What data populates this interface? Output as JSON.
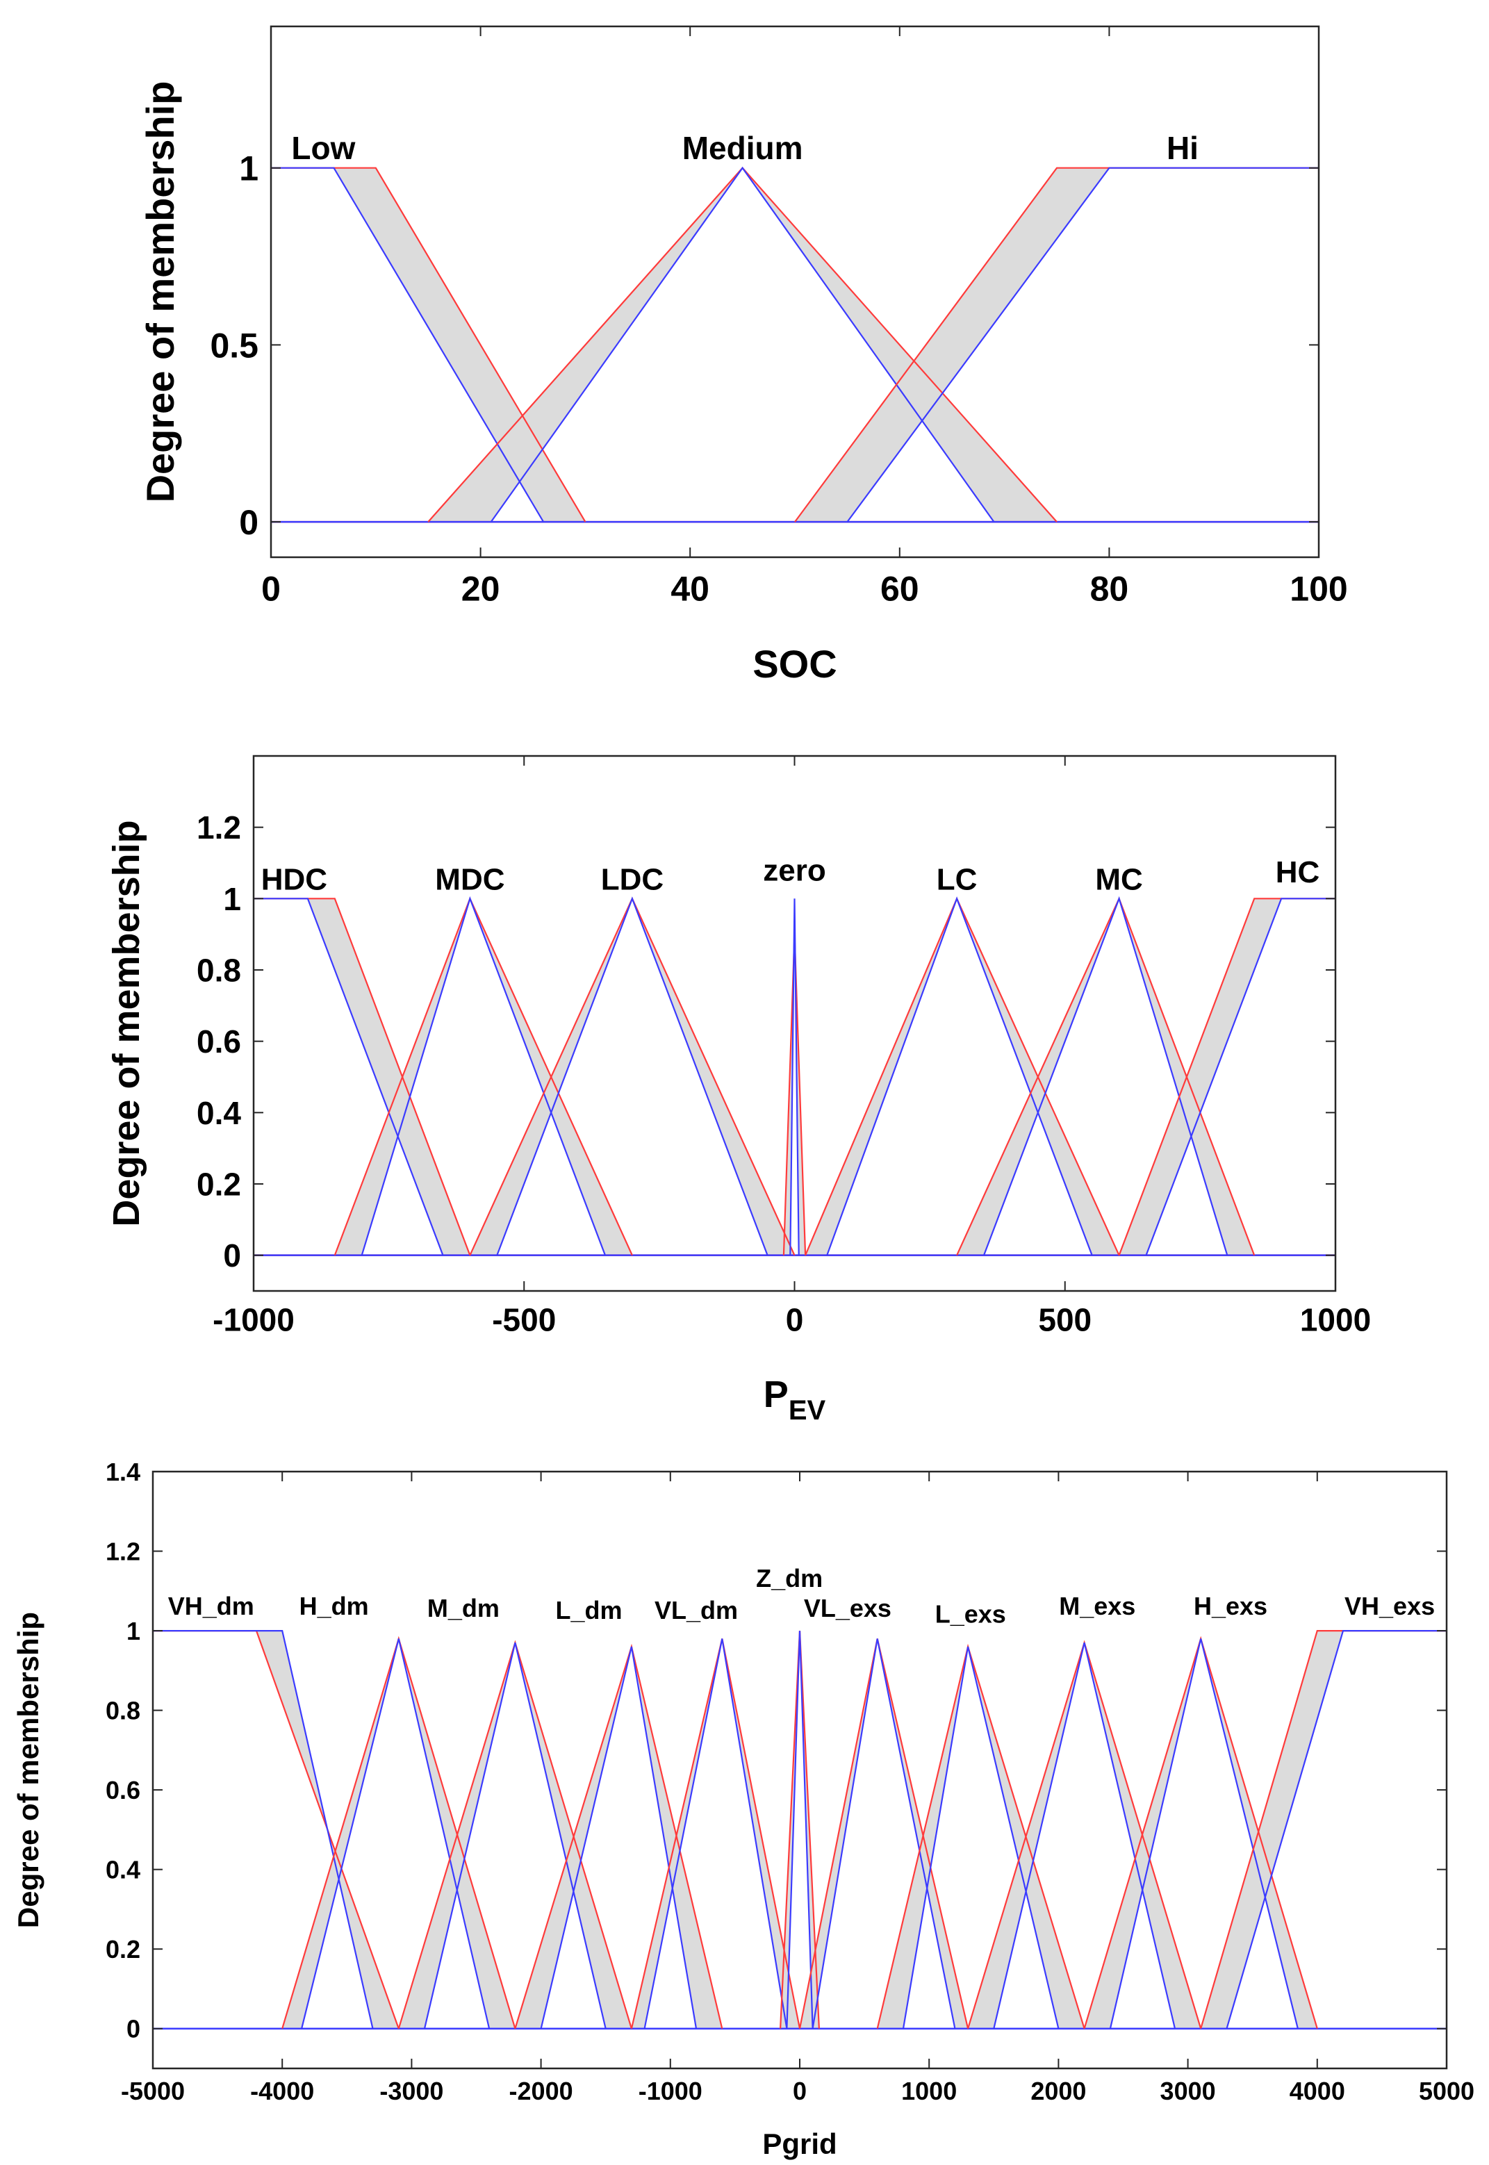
{
  "chart_data": [
    {
      "type": "line",
      "title": "",
      "xlabel": "SOC",
      "xlabel_sub": "",
      "ylabel": "Degree of membership",
      "xlim": [
        0,
        100
      ],
      "ylim": [
        -0.1,
        1.4
      ],
      "xticks": [
        0,
        20,
        40,
        60,
        80,
        100
      ],
      "xtick_labels": [
        "0",
        "20",
        "40",
        "60",
        "80",
        "100"
      ],
      "yticks": [
        0,
        0.5,
        1
      ],
      "ytick_labels": [
        "0",
        "0.5",
        "1"
      ],
      "colors": {
        "upper": "#ff3b3b",
        "lower": "#3b3bff",
        "fill": "#dcdcdc"
      },
      "mfs": [
        {
          "name": "Low",
          "label_x": 5,
          "label_y": 1.025,
          "upper": [
            [
              0,
              1
            ],
            [
              10,
              1
            ],
            [
              30,
              0
            ]
          ],
          "lower": [
            [
              0,
              1
            ],
            [
              6,
              1
            ],
            [
              26,
              0
            ]
          ]
        },
        {
          "name": "Medium",
          "label_x": 45,
          "label_y": 1.025,
          "upper": [
            [
              15,
              0
            ],
            [
              45,
              1
            ],
            [
              75,
              0
            ]
          ],
          "lower": [
            [
              21,
              0
            ],
            [
              45,
              1
            ],
            [
              69,
              0
            ]
          ]
        },
        {
          "name": "Hi",
          "label_x": 87,
          "label_y": 1.025,
          "upper": [
            [
              50,
              0
            ],
            [
              75,
              1
            ],
            [
              100,
              1
            ]
          ],
          "lower": [
            [
              55,
              0
            ],
            [
              80,
              1
            ],
            [
              100,
              1
            ]
          ]
        }
      ]
    },
    {
      "type": "line",
      "title": "",
      "xlabel": "P",
      "xlabel_sub": "EV",
      "ylabel": "Degree of membership",
      "xlim": [
        -1000,
        1000
      ],
      "ylim": [
        -0.1,
        1.4
      ],
      "xticks": [
        -1000,
        -500,
        0,
        500,
        1000
      ],
      "xtick_labels": [
        "-1000",
        "-500",
        "0",
        "500",
        "1000"
      ],
      "yticks": [
        0,
        0.2,
        0.4,
        0.6,
        0.8,
        1,
        1.2
      ],
      "ytick_labels": [
        "0",
        "0.2",
        "0.4",
        "0.6",
        "0.8",
        "1",
        "1.2"
      ],
      "colors": {
        "upper": "#ff3b3b",
        "lower": "#3b3bff",
        "fill": "#dcdcdc"
      },
      "mfs": [
        {
          "name": "HDC",
          "label_x": -925,
          "label_y": 1.025,
          "upper": [
            [
              -1000,
              1
            ],
            [
              -850,
              1
            ],
            [
              -600,
              0
            ]
          ],
          "lower": [
            [
              -1000,
              1
            ],
            [
              -900,
              1
            ],
            [
              -650,
              0
            ]
          ]
        },
        {
          "name": "MDC",
          "label_x": -600,
          "label_y": 1.025,
          "upper": [
            [
              -850,
              0
            ],
            [
              -600,
              1
            ],
            [
              -300,
              0
            ]
          ],
          "lower": [
            [
              -800,
              0
            ],
            [
              -600,
              1
            ],
            [
              -350,
              0
            ]
          ]
        },
        {
          "name": "LDC",
          "label_x": -300,
          "label_y": 1.025,
          "upper": [
            [
              -600,
              0
            ],
            [
              -300,
              1
            ],
            [
              0,
              0
            ]
          ],
          "lower": [
            [
              -550,
              0
            ],
            [
              -300,
              1
            ],
            [
              -50,
              0
            ]
          ]
        },
        {
          "name": "zero",
          "label_x": 0,
          "label_y": 1.05,
          "upper": [
            [
              -20,
              0
            ],
            [
              0,
              0.9
            ],
            [
              20,
              0
            ]
          ],
          "lower": [
            [
              -8,
              0
            ],
            [
              0,
              1
            ],
            [
              8,
              0
            ]
          ]
        },
        {
          "name": "LC",
          "label_x": 300,
          "label_y": 1.025,
          "upper": [
            [
              20,
              0
            ],
            [
              300,
              1
            ],
            [
              600,
              0
            ]
          ],
          "lower": [
            [
              60,
              0
            ],
            [
              300,
              1
            ],
            [
              550,
              0
            ]
          ]
        },
        {
          "name": "MC",
          "label_x": 600,
          "label_y": 1.025,
          "upper": [
            [
              300,
              0
            ],
            [
              600,
              1
            ],
            [
              850,
              0
            ]
          ],
          "lower": [
            [
              350,
              0
            ],
            [
              600,
              1
            ],
            [
              800,
              0
            ]
          ]
        },
        {
          "name": "HC",
          "label_x": 930,
          "label_y": 1.045,
          "upper": [
            [
              600,
              0
            ],
            [
              850,
              1
            ],
            [
              1000,
              1
            ]
          ],
          "lower": [
            [
              650,
              0
            ],
            [
              900,
              1
            ],
            [
              1000,
              1
            ]
          ]
        }
      ]
    },
    {
      "type": "line",
      "title": "",
      "xlabel": "Pgrid",
      "xlabel_sub": "",
      "ylabel": "Degree of membership",
      "xlim": [
        -5000,
        5000
      ],
      "ylim": [
        -0.1,
        1.4
      ],
      "xticks": [
        -5000,
        -4000,
        -3000,
        -2000,
        -1000,
        0,
        1000,
        2000,
        3000,
        4000,
        5000
      ],
      "xtick_labels": [
        "-5000",
        "-4000",
        "-3000",
        "-2000",
        "-1000",
        "0",
        "1000",
        "2000",
        "3000",
        "4000",
        "5000"
      ],
      "yticks": [
        0,
        0.2,
        0.4,
        0.6,
        0.8,
        1,
        1.2,
        1.4
      ],
      "ytick_labels": [
        "0",
        "0.2",
        "0.4",
        "0.6",
        "0.8",
        "1",
        "1.2",
        "1.4"
      ],
      "colors": {
        "upper": "#ff3b3b",
        "lower": "#3b3bff",
        "fill": "#dcdcdc"
      },
      "mfs": [
        {
          "name": "VH_dm",
          "label_x": -4550,
          "label_y": 1.04,
          "upper": [
            [
              -5000,
              1
            ],
            [
              -4200,
              1
            ],
            [
              -3100,
              0
            ]
          ],
          "lower": [
            [
              -5000,
              1
            ],
            [
              -4000,
              1
            ],
            [
              -3300,
              0
            ]
          ]
        },
        {
          "name": "H_dm",
          "label_x": -3600,
          "label_y": 1.04,
          "upper": [
            [
              -4000,
              0
            ],
            [
              -3100,
              0.98
            ],
            [
              -2200,
              0
            ]
          ],
          "lower": [
            [
              -3850,
              0
            ],
            [
              -3100,
              0.98
            ],
            [
              -2400,
              0
            ]
          ]
        },
        {
          "name": "M_dm",
          "label_x": -2600,
          "label_y": 1.035,
          "upper": [
            [
              -3100,
              0
            ],
            [
              -2200,
              0.97
            ],
            [
              -1300,
              0
            ]
          ],
          "lower": [
            [
              -2900,
              0
            ],
            [
              -2200,
              0.97
            ],
            [
              -1500,
              0
            ]
          ]
        },
        {
          "name": "L_dm",
          "label_x": -1630,
          "label_y": 1.03,
          "upper": [
            [
              -2200,
              0
            ],
            [
              -1300,
              0.96
            ],
            [
              -600,
              0
            ]
          ],
          "lower": [
            [
              -2000,
              0
            ],
            [
              -1300,
              0.96
            ],
            [
              -800,
              0
            ]
          ]
        },
        {
          "name": "VL_dm",
          "label_x": -800,
          "label_y": 1.03,
          "upper": [
            [
              -1300,
              0
            ],
            [
              -600,
              0.98
            ],
            [
              0,
              0
            ]
          ],
          "lower": [
            [
              -1200,
              0
            ],
            [
              -600,
              0.98
            ],
            [
              -100,
              0
            ]
          ]
        },
        {
          "name": "Z_dm",
          "label_x": -80,
          "label_y": 1.11,
          "upper": [
            [
              -150,
              0
            ],
            [
              0,
              1
            ],
            [
              150,
              0
            ]
          ],
          "lower": [
            [
              -100,
              0
            ],
            [
              0,
              1
            ],
            [
              100,
              0
            ]
          ]
        },
        {
          "name": "VL_exs",
          "label_x": 370,
          "label_y": 1.035,
          "upper": [
            [
              0,
              0
            ],
            [
              600,
              0.98
            ],
            [
              1300,
              0
            ]
          ],
          "lower": [
            [
              100,
              0
            ],
            [
              600,
              0.98
            ],
            [
              1200,
              0
            ]
          ]
        },
        {
          "name": "L_exs",
          "label_x": 1320,
          "label_y": 1.02,
          "upper": [
            [
              600,
              0
            ],
            [
              1300,
              0.96
            ],
            [
              2200,
              0
            ]
          ],
          "lower": [
            [
              800,
              0
            ],
            [
              1300,
              0.96
            ],
            [
              2000,
              0
            ]
          ]
        },
        {
          "name": "M_exs",
          "label_x": 2300,
          "label_y": 1.04,
          "upper": [
            [
              1300,
              0
            ],
            [
              2200,
              0.97
            ],
            [
              3100,
              0
            ]
          ],
          "lower": [
            [
              1500,
              0
            ],
            [
              2200,
              0.97
            ],
            [
              2900,
              0
            ]
          ]
        },
        {
          "name": "H_exs",
          "label_x": 3330,
          "label_y": 1.04,
          "upper": [
            [
              2200,
              0
            ],
            [
              3100,
              0.98
            ],
            [
              4000,
              0
            ]
          ],
          "lower": [
            [
              2400,
              0
            ],
            [
              3100,
              0.98
            ],
            [
              3850,
              0
            ]
          ]
        },
        {
          "name": "VH_exs",
          "label_x": 4560,
          "label_y": 1.04,
          "upper": [
            [
              3100,
              0
            ],
            [
              4000,
              1
            ],
            [
              5000,
              1
            ]
          ],
          "lower": [
            [
              3300,
              0
            ],
            [
              4200,
              1
            ],
            [
              5000,
              1
            ]
          ]
        }
      ]
    }
  ]
}
